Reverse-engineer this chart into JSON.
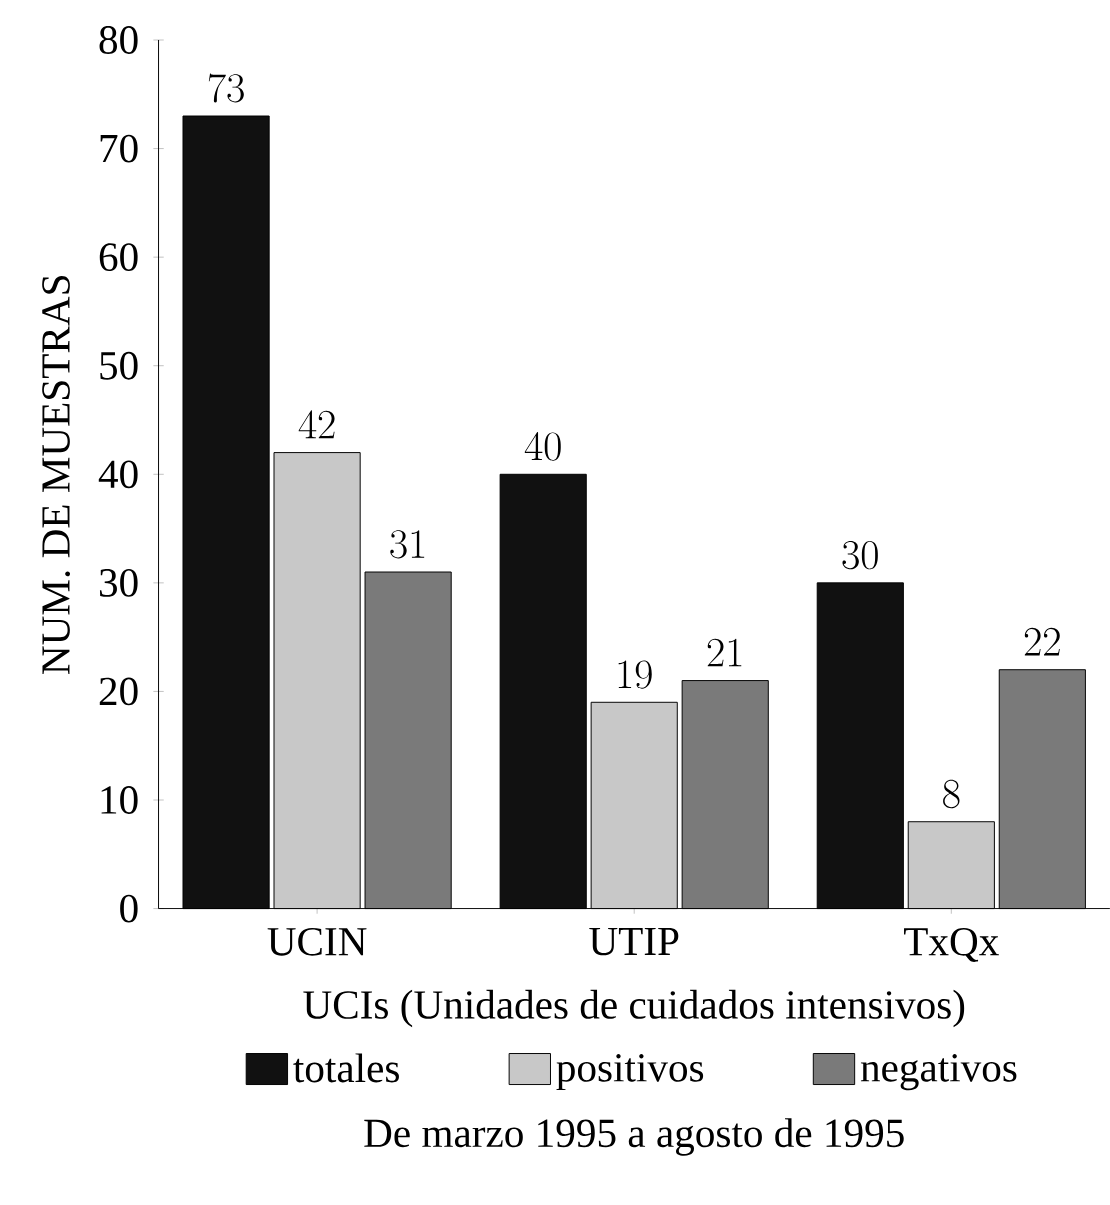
{
  "chart_data": {
    "type": "bar",
    "xlabel": "UCIs (Unidades de cuidados intensivos)",
    "ylabel": "NUM. DE MUESTRAS",
    "categories": [
      "UCIN",
      "UTIP",
      "TxQx"
    ],
    "series": [
      {
        "name": "totales",
        "color": "#111111",
        "values": [
          73,
          40,
          30
        ]
      },
      {
        "name": "positivos",
        "color": "#c8c8c8",
        "values": [
          42,
          19,
          8
        ]
      },
      {
        "name": "negativos",
        "color": "#7a7a7a",
        "values": [
          31,
          21,
          22
        ]
      }
    ],
    "ylim": [
      0,
      80
    ],
    "yticks": [
      0,
      10,
      20,
      30,
      40,
      50,
      60,
      70,
      80
    ],
    "data_labels": true,
    "legend": "bottom",
    "grid": false,
    "annotations": [
      "De marzo 1995 a agosto de 1995"
    ]
  }
}
